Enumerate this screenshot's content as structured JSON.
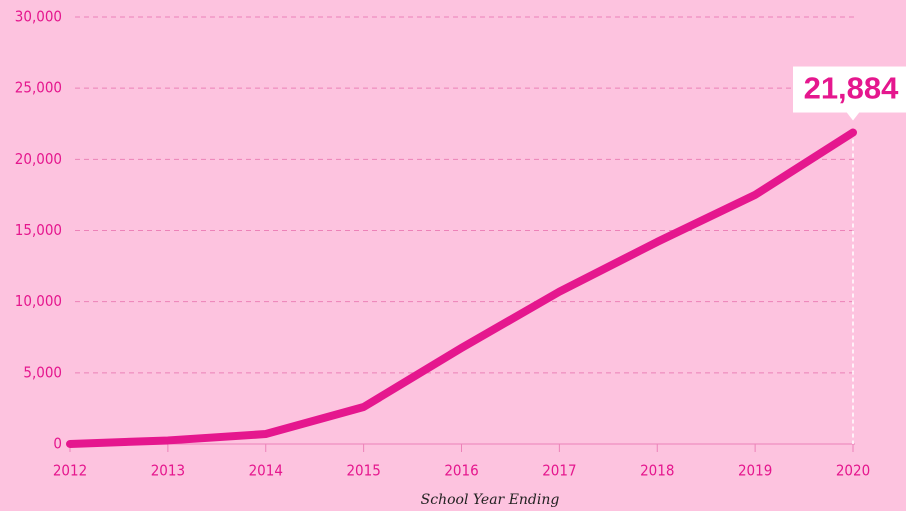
{
  "chart_data": {
    "type": "line",
    "x_label": "School Year Ending",
    "x": [
      2012,
      2013,
      2014,
      2015,
      2016,
      2017,
      2018,
      2019,
      2020
    ],
    "series": [
      {
        "color": "#e5178e",
        "values": [
          0,
          250,
          700,
          2600,
          6750,
          10700,
          14200,
          17500,
          21884
        ],
        "value_labels": [
          null,
          null,
          null,
          null,
          null,
          null,
          null,
          null,
          "21,884"
        ]
      }
    ],
    "xlim": [
      2012,
      2020
    ],
    "xticks": [
      2012,
      2013,
      2014,
      2015,
      2016,
      2017,
      2018,
      2019,
      2020
    ],
    "ylim": [
      0,
      30000
    ],
    "yticks": [
      0,
      {
        "value": 5000,
        "label": "5,000"
      },
      {
        "value": 10000,
        "label": "10,000"
      },
      {
        "value": 15000,
        "label": "15,000"
      },
      {
        "value": 20000,
        "label": "20,000"
      },
      {
        "value": 25000,
        "label": "25,000"
      },
      {
        "value": 30000,
        "label": "30,000"
      }
    ],
    "grid": true
  }
}
